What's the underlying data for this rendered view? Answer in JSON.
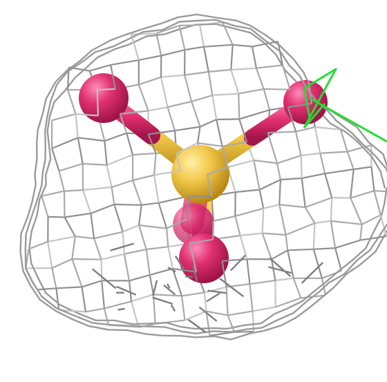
{
  "scene": {
    "colors": {
      "background": "#ffffff",
      "mesh": "#9a9a9a",
      "mesh_light": "#cfcfcf",
      "sulfur": "#f2c94c",
      "oxygen": "#e0306f",
      "marker": "#22dd33"
    },
    "molecule": {
      "center_atom": "sulfur",
      "bonded_atoms": [
        "oxygen",
        "oxygen",
        "oxygen",
        "oxygen"
      ]
    }
  }
}
